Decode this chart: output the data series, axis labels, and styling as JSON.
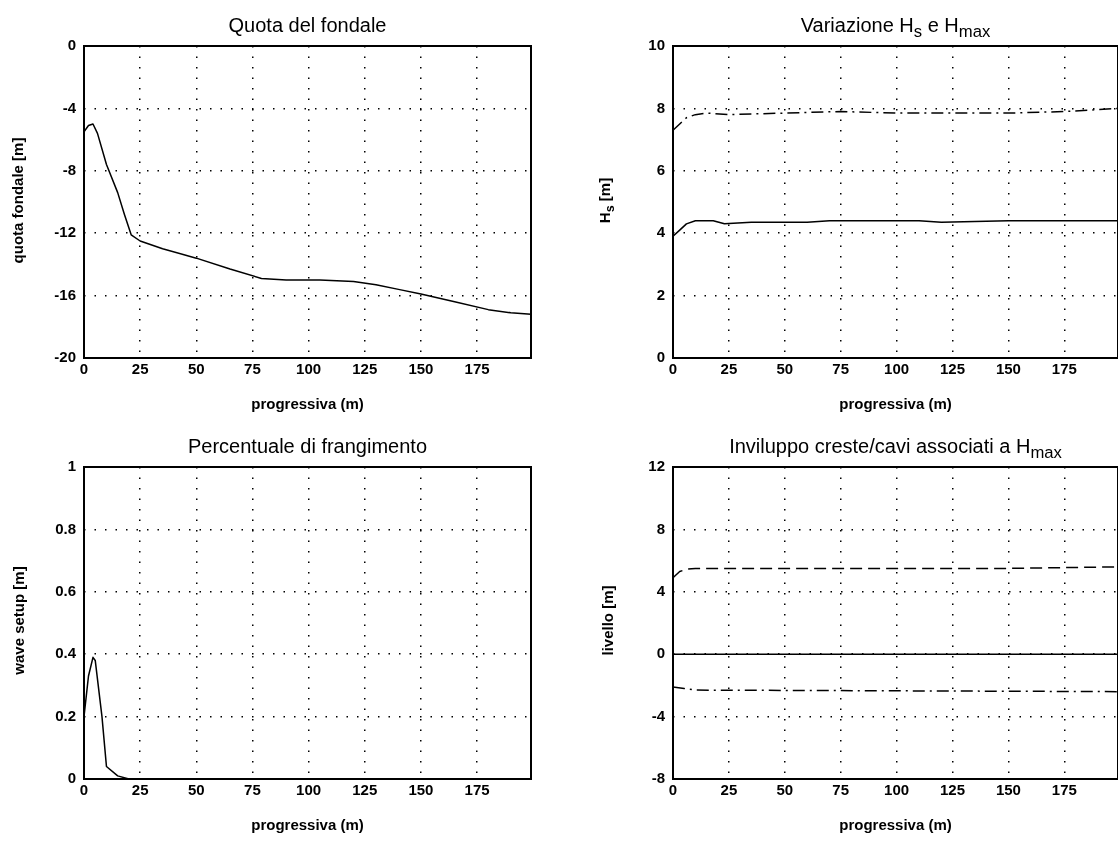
{
  "chart_data": [
    {
      "type": "line",
      "title": "Quota del fondale",
      "xlabel": "progressiva (m)",
      "ylabel": "quota fondale [m]",
      "xlim": [
        0,
        199
      ],
      "xticks": [
        0,
        25,
        50,
        75,
        100,
        125,
        150,
        175
      ],
      "ylim": [
        -20,
        0
      ],
      "yticks": [
        -20,
        -16,
        -12,
        -8,
        -4,
        0
      ],
      "grid": true,
      "series": [
        {
          "color": "#000000",
          "line_style": "solid",
          "x": [
            0,
            2,
            4,
            6,
            10,
            15,
            18,
            21,
            25,
            35,
            50,
            65,
            79,
            90,
            105,
            120,
            130,
            140,
            150,
            165,
            180,
            190,
            199
          ],
          "values": [
            -5.5,
            -5.1,
            -5.0,
            -5.6,
            -7.6,
            -9.4,
            -10.8,
            -12.1,
            -12.5,
            -13.0,
            -13.6,
            -14.3,
            -14.9,
            -15.0,
            -15.0,
            -15.1,
            -15.3,
            -15.6,
            -15.9,
            -16.4,
            -16.9,
            -17.1,
            -17.2
          ]
        }
      ]
    },
    {
      "type": "line",
      "title": "Variazione H$_{s}$ e H$_{max}$",
      "xlabel": "progressiva (m)",
      "ylabel": "H$_{s}$ [m]",
      "xlim": [
        0,
        199
      ],
      "xticks": [
        0,
        25,
        50,
        75,
        100,
        125,
        150,
        175
      ],
      "ylim": [
        0,
        10
      ],
      "yticks": [
        0,
        2,
        4,
        6,
        8,
        10
      ],
      "grid": true,
      "series": [
        {
          "color": "#000000",
          "line_style": "solid",
          "x": [
            0,
            3,
            6,
            10,
            18,
            23,
            35,
            60,
            70,
            110,
            120,
            150,
            199
          ],
          "values": [
            3.9,
            4.1,
            4.3,
            4.4,
            4.4,
            4.3,
            4.35,
            4.35,
            4.4,
            4.4,
            4.35,
            4.4,
            4.4
          ]
        },
        {
          "color": "#000000",
          "line_style": "dashdot",
          "x": [
            0,
            3,
            6,
            10,
            15,
            25,
            50,
            75,
            100,
            125,
            150,
            175,
            199
          ],
          "values": [
            7.3,
            7.5,
            7.7,
            7.8,
            7.85,
            7.8,
            7.85,
            7.9,
            7.85,
            7.85,
            7.85,
            7.9,
            8.0
          ]
        }
      ]
    },
    {
      "type": "line",
      "title": "Percentuale di frangimento",
      "xlabel": "progressiva (m)",
      "ylabel": "wave setup [m]",
      "xlim": [
        0,
        199
      ],
      "xticks": [
        0,
        25,
        50,
        75,
        100,
        125,
        150,
        175
      ],
      "ylim": [
        0,
        1
      ],
      "yticks": [
        0,
        0.2,
        0.4,
        0.6,
        0.8,
        1
      ],
      "grid": true,
      "series": [
        {
          "color": "#000000",
          "line_style": "solid",
          "x": [
            0,
            2,
            4,
            5,
            8,
            10,
            15,
            20,
            199
          ],
          "values": [
            0.2,
            0.33,
            0.39,
            0.38,
            0.2,
            0.04,
            0.01,
            0,
            0
          ]
        }
      ]
    },
    {
      "type": "line",
      "title": "Inviluppo creste/cavi associati a H$_{max}$",
      "xlabel": "progressiva (m)",
      "ylabel": "livello [m]",
      "xlim": [
        0,
        199
      ],
      "xticks": [
        0,
        25,
        50,
        75,
        100,
        125,
        150,
        175
      ],
      "ylim": [
        -8,
        12
      ],
      "yticks": [
        -8,
        -4,
        0,
        4,
        8,
        12
      ],
      "grid": true,
      "series": [
        {
          "color": "#000000",
          "line_style": "dashed",
          "x": [
            0,
            3,
            6,
            10,
            50,
            100,
            150,
            199
          ],
          "values": [
            4.9,
            5.3,
            5.45,
            5.5,
            5.5,
            5.5,
            5.5,
            5.6
          ]
        },
        {
          "color": "#000000",
          "line_style": "solid",
          "x": [
            0,
            199
          ],
          "values": [
            0,
            0
          ]
        },
        {
          "color": "#000000",
          "line_style": "dashdot",
          "x": [
            0,
            5,
            10,
            199
          ],
          "values": [
            -2.1,
            -2.2,
            -2.3,
            -2.4
          ]
        }
      ]
    }
  ]
}
